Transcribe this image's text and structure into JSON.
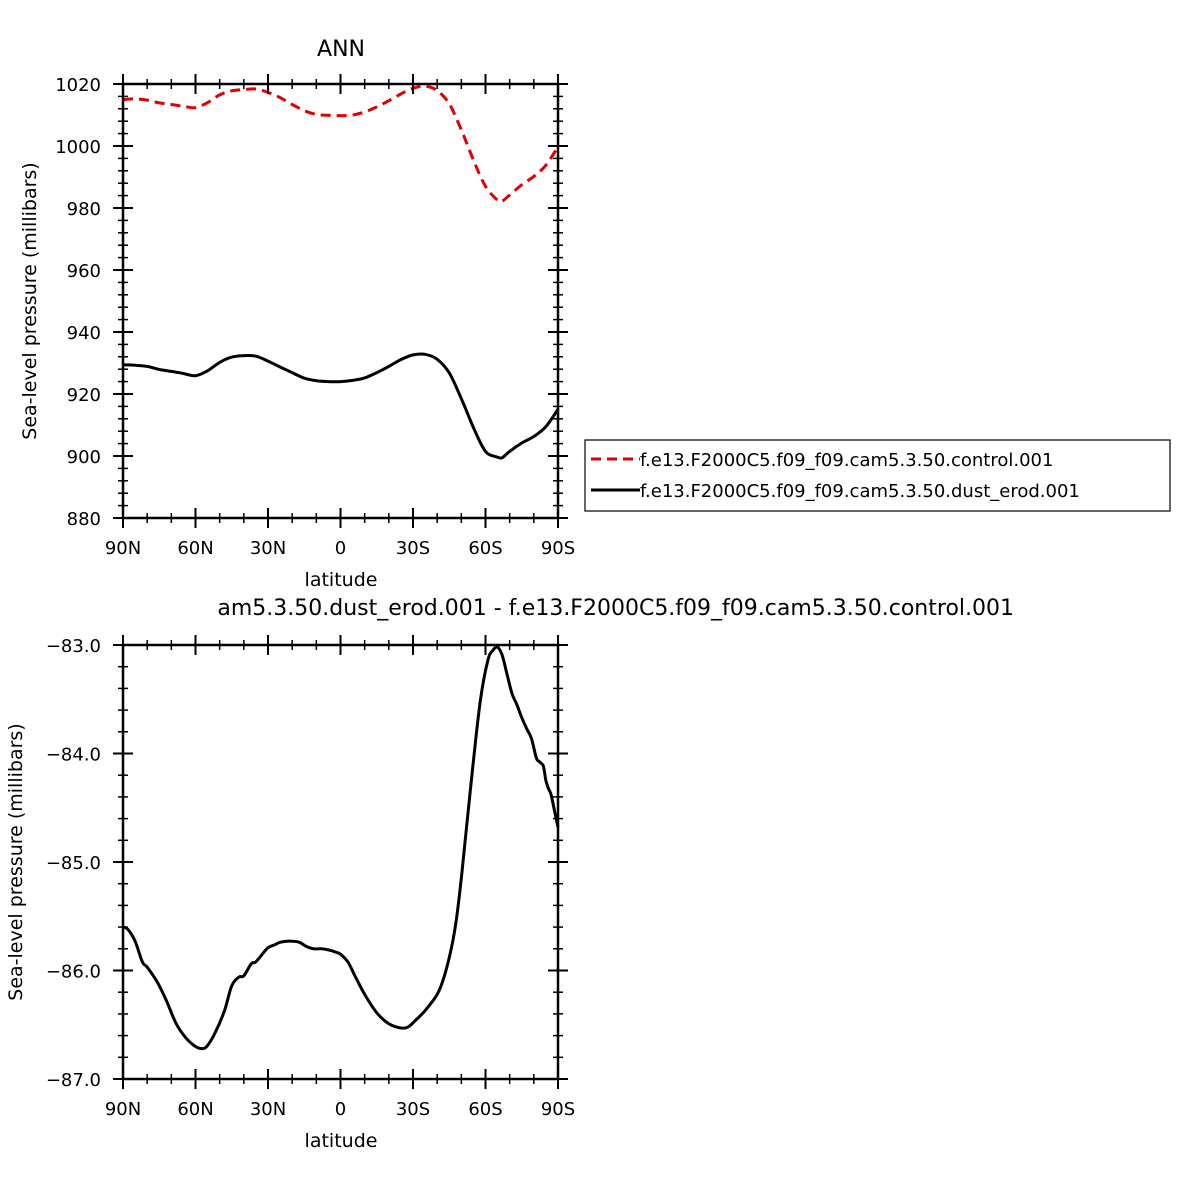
{
  "chart_data": [
    {
      "type": "line",
      "title": "ANN",
      "xlabel": "latitude",
      "ylabel": "Sea-level pressure (millibars)",
      "xlim": [
        90,
        -90
      ],
      "ylim": [
        880,
        1020
      ],
      "x_ticks": [
        {
          "value": 90,
          "label": "90N"
        },
        {
          "value": 60,
          "label": "60N"
        },
        {
          "value": 30,
          "label": "30N"
        },
        {
          "value": 0,
          "label": "0"
        },
        {
          "value": -30,
          "label": "30S"
        },
        {
          "value": -60,
          "label": "60S"
        },
        {
          "value": -90,
          "label": "90S"
        }
      ],
      "y_ticks": [
        {
          "value": 880,
          "label": "880"
        },
        {
          "value": 900,
          "label": "900"
        },
        {
          "value": 920,
          "label": "920"
        },
        {
          "value": 940,
          "label": "940"
        },
        {
          "value": 960,
          "label": "960"
        },
        {
          "value": 980,
          "label": "980"
        },
        {
          "value": 1000,
          "label": "1000"
        },
        {
          "value": 1020,
          "label": "1020"
        }
      ],
      "legend_position": "right",
      "series": [
        {
          "name": "f.e13.F2000C5.f09_f09.cam5.3.50.control.001",
          "color": "#e00000",
          "dash": "dashed",
          "x": [
            90,
            85,
            80,
            75,
            70,
            65,
            60,
            55,
            50,
            45,
            40,
            35,
            30,
            25,
            20,
            15,
            10,
            5,
            0,
            -5,
            -10,
            -15,
            -20,
            -25,
            -30,
            -35,
            -40,
            -45,
            -50,
            -55,
            -60,
            -65,
            -67,
            -70,
            -75,
            -80,
            -85,
            -90
          ],
          "y": [
            1015,
            1015.2,
            1014.8,
            1013.9,
            1013.4,
            1012.8,
            1012.4,
            1014,
            1016.5,
            1017.8,
            1018.2,
            1018.4,
            1017.3,
            1015.6,
            1013.4,
            1011.4,
            1010.2,
            1009.9,
            1009.8,
            1010,
            1011,
            1012.6,
            1014.6,
            1016.8,
            1018.6,
            1019.3,
            1017.9,
            1013.6,
            1005.2,
            995.5,
            987,
            982.5,
            982.3,
            984.2,
            987.5,
            990.2,
            993.8,
            999.8
          ]
        },
        {
          "name": "f.e13.F2000C5.f09_f09.cam5.3.50.dust_erod.001",
          "color": "#000000",
          "dash": "solid",
          "x": [
            90,
            85,
            80,
            75,
            70,
            65,
            60,
            55,
            50,
            45,
            40,
            35,
            30,
            25,
            20,
            15,
            10,
            5,
            0,
            -5,
            -10,
            -15,
            -20,
            -25,
            -30,
            -35,
            -40,
            -45,
            -50,
            -55,
            -60,
            -65,
            -67,
            -70,
            -75,
            -80,
            -85,
            -90
          ],
          "y": [
            929.4,
            929.3,
            928.9,
            927.9,
            927.3,
            926.6,
            925.9,
            927.5,
            930.2,
            931.9,
            932.4,
            932.2,
            930.6,
            928.7,
            926.9,
            925.1,
            924.3,
            924,
            924,
            924.4,
            925.2,
            926.9,
            928.9,
            931.1,
            932.6,
            932.8,
            931.2,
            926.8,
            918.5,
            909.2,
            901.5,
            899.6,
            899.5,
            901.5,
            904.2,
            906.3,
            909.5,
            915.1
          ]
        }
      ]
    },
    {
      "type": "line",
      "title": "am5.3.50.dust_erod.001 - f.e13.F2000C5.f09_f09.cam5.3.50.control.001",
      "xlabel": "latitude",
      "ylabel": "Sea-level pressure (millibars)",
      "xlim": [
        90,
        -90
      ],
      "ylim": [
        -87.0,
        -83.0
      ],
      "x_ticks": [
        {
          "value": 90,
          "label": "90N"
        },
        {
          "value": 60,
          "label": "60N"
        },
        {
          "value": 30,
          "label": "30N"
        },
        {
          "value": 0,
          "label": "0"
        },
        {
          "value": -30,
          "label": "30S"
        },
        {
          "value": -60,
          "label": "60S"
        },
        {
          "value": -90,
          "label": "90S"
        }
      ],
      "y_ticks": [
        {
          "value": -87,
          "label": "−87.0"
        },
        {
          "value": -86,
          "label": "−86.0"
        },
        {
          "value": -85,
          "label": "−85.0"
        },
        {
          "value": -84,
          "label": "−84.0"
        },
        {
          "value": -83,
          "label": "−83.0"
        }
      ],
      "series": [
        {
          "color": "#000000",
          "dash": "solid",
          "x": [
            90,
            88,
            85,
            82,
            80,
            76,
            72,
            68,
            64,
            60,
            57,
            55,
            52,
            48,
            45,
            42,
            40,
            37,
            35,
            32,
            30,
            27,
            25,
            22,
            20,
            17,
            14,
            11,
            8,
            5,
            2,
            0,
            -3,
            -6,
            -10,
            -15,
            -20,
            -25,
            -28,
            -31,
            -35,
            -40,
            -43,
            -46,
            -48,
            -50,
            -52,
            -55,
            -58,
            -61,
            -63,
            -65,
            -67,
            -69,
            -71,
            -73,
            -75,
            -77,
            -79,
            -81,
            -82,
            -83,
            -84,
            -85,
            -86,
            -87,
            -88,
            -90
          ],
          "y": [
            -85.6,
            -85.62,
            -85.73,
            -85.92,
            -85.97,
            -86.1,
            -86.28,
            -86.49,
            -86.62,
            -86.7,
            -86.72,
            -86.69,
            -86.58,
            -86.37,
            -86.14,
            -86.06,
            -86.05,
            -85.94,
            -85.92,
            -85.84,
            -85.79,
            -85.76,
            -85.74,
            -85.73,
            -85.73,
            -85.74,
            -85.78,
            -85.8,
            -85.8,
            -85.81,
            -85.83,
            -85.85,
            -85.92,
            -86.05,
            -86.22,
            -86.39,
            -86.49,
            -86.53,
            -86.52,
            -86.46,
            -86.37,
            -86.22,
            -86.05,
            -85.78,
            -85.52,
            -85.15,
            -84.71,
            -84.07,
            -83.49,
            -83.14,
            -83.05,
            -83.02,
            -83.1,
            -83.28,
            -83.45,
            -83.55,
            -83.67,
            -83.77,
            -83.86,
            -84.04,
            -84.07,
            -84.09,
            -84.12,
            -84.25,
            -84.32,
            -84.37,
            -84.47,
            -84.68
          ]
        }
      ]
    }
  ]
}
